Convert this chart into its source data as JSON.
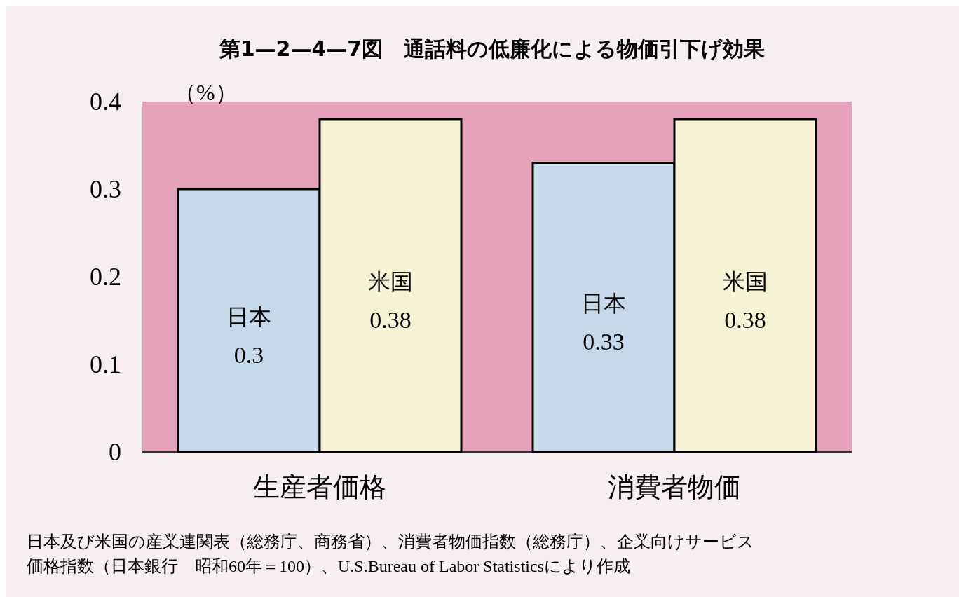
{
  "chart_data": {
    "type": "bar",
    "title": "第1—2—4—7図　通話料の低廉化による物価引下げ効果",
    "ylabel": "（%）",
    "categories": [
      "生産者価格",
      "消費者物価"
    ],
    "series": [
      {
        "name": "日本",
        "color": "#c6d9ea",
        "values": [
          0.3,
          0.33
        ]
      },
      {
        "name": "米国",
        "color": "#f7f2d6",
        "values": [
          0.38,
          0.38
        ]
      }
    ],
    "ylim": [
      0,
      0.4
    ],
    "yticks": [
      0,
      0.1,
      0.2,
      0.3,
      0.4
    ],
    "grid": false,
    "data_labels": true,
    "bands": [
      {
        "axis": "y",
        "from": 0,
        "to": 0.4,
        "color": "#e6a2ba"
      }
    ],
    "annotations": [
      "日本及び米国の産業連関表（総務庁、商務省）、消費者物価指数（総務庁）、企業向けサービス",
      "価格指数（日本銀行　昭和60年＝100）、U.S.Bureau of Labor Statisticsにより作成"
    ]
  }
}
